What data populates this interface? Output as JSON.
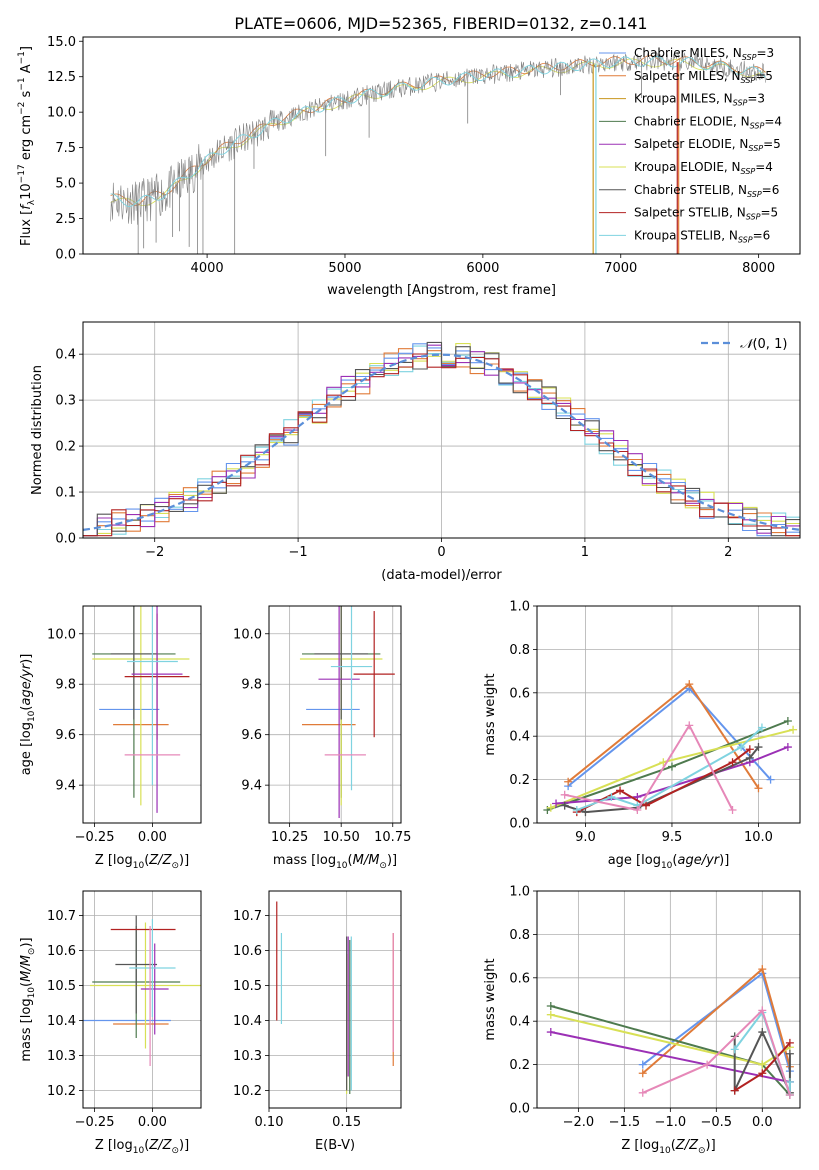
{
  "figure_title": "PLATE=0606, MJD=52365, FIBERID=0132, z=0.141",
  "colors": {
    "Chabrier MILES": "#6495ed",
    "Salpeter MILES": "#e07b39",
    "Kroupa MILES": "#c8961e",
    "Chabrier ELODIE": "#4e7a4e",
    "Salpeter ELODIE": "#9b30b5",
    "Kroupa ELODIE": "#d8e055",
    "Chabrier STELIB": "#555555",
    "Salpeter STELIB": "#b22222",
    "Kroupa STELIB": "#7fd3e0",
    "data": "#808080",
    "pink": "#e688b8",
    "gauss": "#5b8fd9"
  },
  "chart_data": [
    {
      "id": "spectrum",
      "type": "line",
      "title": "PLATE=0606, MJD=52365, FIBERID=0132, z=0.141",
      "xlabel": "wavelength [Angstrom, rest frame]",
      "ylabel": "Flux [f_λ10^-17 erg cm^-2 s^-1 A^-1]",
      "xlim": [
        3100,
        8300
      ],
      "ylim": [
        0,
        15.3
      ],
      "xticks": [
        4000,
        5000,
        6000,
        7000,
        8000
      ],
      "yticks": [
        0.0,
        2.5,
        5.0,
        7.5,
        10.0,
        12.5,
        15.0
      ],
      "legend_position": "top-right",
      "legend": [
        {
          "label": "Chabrier MILES, N_SSP=3",
          "base": "Chabrier MILES, N",
          "sub": "SSP",
          "tail": "=3"
        },
        {
          "label": "Salpeter MILES, N_SSP=5",
          "base": "Salpeter MILES, N",
          "sub": "SSP",
          "tail": "=5"
        },
        {
          "label": "Kroupa MILES, N_SSP=3",
          "base": "Kroupa MILES, N",
          "sub": "SSP",
          "tail": "=3"
        },
        {
          "label": "Chabrier ELODIE, N_SSP=4",
          "base": "Chabrier ELODIE, N",
          "sub": "SSP",
          "tail": "=4"
        },
        {
          "label": "Salpeter ELODIE, N_SSP=5",
          "base": "Salpeter ELODIE, N",
          "sub": "SSP",
          "tail": "=5"
        },
        {
          "label": "Kroupa ELODIE, N_SSP=4",
          "base": "Kroupa ELODIE, N",
          "sub": "SSP",
          "tail": "=4"
        },
        {
          "label": "Chabrier STELIB, N_SSP=6",
          "base": "Chabrier STELIB, N",
          "sub": "SSP",
          "tail": "=6"
        },
        {
          "label": "Salpeter STELIB, N_SSP=5",
          "base": "Salpeter STELIB, N",
          "sub": "SSP",
          "tail": "=5"
        },
        {
          "label": "Kroupa STELIB, N_SSP=6",
          "base": "Kroupa STELIB, N",
          "sub": "SSP",
          "tail": "=6"
        }
      ],
      "continuum": [
        [
          3300,
          3.9
        ],
        [
          3500,
          3.6
        ],
        [
          3700,
          4.3
        ],
        [
          3900,
          5.9
        ],
        [
          4100,
          7.3
        ],
        [
          4300,
          8.3
        ],
        [
          4500,
          9.3
        ],
        [
          4700,
          10.0
        ],
        [
          4900,
          10.6
        ],
        [
          5100,
          11.1
        ],
        [
          5400,
          11.7
        ],
        [
          5700,
          12.2
        ],
        [
          6000,
          12.6
        ],
        [
          6300,
          12.9
        ],
        [
          6600,
          13.2
        ],
        [
          6900,
          13.5
        ],
        [
          7200,
          13.6
        ],
        [
          7500,
          13.5
        ],
        [
          7800,
          13.1
        ],
        [
          8050,
          12.7
        ]
      ],
      "absorption_lines": [
        [
          3500,
          0.0
        ],
        [
          3540,
          0.4
        ],
        [
          3630,
          0.8
        ],
        [
          3750,
          1.2
        ],
        [
          3800,
          1.6
        ],
        [
          3870,
          0.5
        ],
        [
          3930,
          0.0
        ],
        [
          3970,
          0.0
        ],
        [
          4200,
          0.0
        ],
        [
          4340,
          6.0
        ],
        [
          4860,
          6.9
        ],
        [
          5175,
          8.2
        ],
        [
          5890,
          9.2
        ],
        [
          6563,
          11.2
        ],
        [
          7150,
          11.0
        ]
      ],
      "model_drops": [
        [
          6800,
          "#c8961e"
        ],
        [
          6820,
          "#7fd3e0"
        ],
        [
          7410,
          "#b22222"
        ],
        [
          7420,
          "#e07b39"
        ]
      ],
      "flux_range": [
        3300,
        8050
      ]
    },
    {
      "id": "residuals",
      "type": "area",
      "xlabel": "(data-model)/error",
      "ylabel": "Normed distribution",
      "xlim": [
        -2.5,
        2.5
      ],
      "ylim": [
        0,
        0.47
      ],
      "xticks": [
        -2,
        -1,
        0,
        1,
        2
      ],
      "yticks": [
        0.0,
        0.1,
        0.2,
        0.3,
        0.4
      ],
      "legend": {
        "label": "N(0, 1)",
        "script": "𝒩",
        "args": "(0, 1)"
      },
      "legend_position": "top-right",
      "bin_width": 0.1,
      "bin_start": -2.5
    },
    {
      "id": "age_vs_Z",
      "type": "scatter",
      "xlabel": "Z [log10(Z/Z⊙)]",
      "ylabel": "age [log10(age/yr)]",
      "xlim": [
        -0.3,
        0.21
      ],
      "ylim": [
        9.25,
        10.11
      ],
      "xticks": [
        -0.25,
        0.0
      ],
      "yticks": [
        9.4,
        9.6,
        9.8,
        10.0
      ],
      "points": [
        {
          "c": "Chabrier MILES",
          "x": -0.1,
          "xe": 0.13,
          "y": 9.7,
          "ye": 0.0
        },
        {
          "c": "Salpeter MILES",
          "x": -0.05,
          "xe": 0.12,
          "y": 9.64,
          "ye": 0.0
        },
        {
          "c": "Chabrier ELODIE",
          "x": -0.08,
          "xe": 0.18,
          "y": 9.92,
          "ye": 0.57
        },
        {
          "c": "Kroupa ELODIE",
          "x": -0.05,
          "xe": 0.21,
          "y": 9.9,
          "ye": 0.58
        },
        {
          "c": "Chabrier STELIB",
          "x": -0.08,
          "xe": 0.1,
          "y": 9.92,
          "ye": 0.26
        },
        {
          "c": "Salpeter STELIB",
          "x": 0.02,
          "xe": 0.14,
          "y": 9.83,
          "ye": 0.25
        },
        {
          "c": "Salpeter ELODIE",
          "x": 0.02,
          "xe": 0.11,
          "y": 9.84,
          "ye": 0.55
        },
        {
          "c": "Kroupa STELIB",
          "x": 0.0,
          "xe": 0.11,
          "y": 9.89,
          "ye": 0.49
        },
        {
          "c": "pink",
          "x": 0.0,
          "xe": 0.12,
          "y": 9.52,
          "ye": 0.0
        }
      ]
    },
    {
      "id": "age_vs_mass",
      "type": "scatter",
      "xlabel": "mass [log10(M/M⊙)]",
      "ylabel": "",
      "xlim": [
        10.15,
        10.79
      ],
      "ylim": [
        9.25,
        10.11
      ],
      "xticks": [
        10.25,
        10.5,
        10.75
      ],
      "yticks": [
        9.4,
        9.6,
        9.8,
        10.0
      ],
      "points": [
        {
          "c": "Chabrier MILES",
          "x": 10.46,
          "xe": 0.13,
          "y": 9.7,
          "ye": 0.0
        },
        {
          "c": "Salpeter MILES",
          "x": 10.44,
          "xe": 0.13,
          "y": 9.64,
          "ye": 0.0
        },
        {
          "c": "Chabrier ELODIE",
          "x": 10.5,
          "xe": 0.19,
          "y": 9.92,
          "ye": 0.57
        },
        {
          "c": "Kroupa ELODIE",
          "x": 10.5,
          "xe": 0.2,
          "y": 9.9,
          "ye": 0.58
        },
        {
          "c": "Chabrier STELIB",
          "x": 10.5,
          "xe": 0.13,
          "y": 9.92,
          "ye": 0.26
        },
        {
          "c": "Salpeter STELIB",
          "x": 10.66,
          "xe": 0.1,
          "y": 9.84,
          "ye": 0.25
        },
        {
          "c": "Salpeter ELODIE",
          "x": 10.49,
          "xe": 0.1,
          "y": 9.82,
          "ye": 0.55
        },
        {
          "c": "Kroupa STELIB",
          "x": 10.55,
          "xe": 0.1,
          "y": 9.87,
          "ye": 0.49
        },
        {
          "c": "pink",
          "x": 10.52,
          "xe": 0.1,
          "y": 9.52,
          "ye": 0.0
        }
      ]
    },
    {
      "id": "massweight_vs_age",
      "type": "line",
      "xlabel": "age [log10(age/yr)]",
      "ylabel": "mass weight",
      "xlim": [
        8.72,
        10.24
      ],
      "ylim": [
        0,
        1.0
      ],
      "xticks": [
        9.0,
        9.5,
        10.0
      ],
      "yticks": [
        0.0,
        0.2,
        0.4,
        0.6,
        0.8,
        1.0
      ],
      "series": [
        {
          "c": "Chabrier MILES",
          "x": [
            8.9,
            9.6,
            10.07
          ],
          "y": [
            0.17,
            0.62,
            0.2
          ]
        },
        {
          "c": "Salpeter MILES",
          "x": [
            8.9,
            9.6,
            10.0
          ],
          "y": [
            0.19,
            0.64,
            0.16
          ]
        },
        {
          "c": "Chabrier ELODIE",
          "x": [
            8.78,
            9.5,
            10.17
          ],
          "y": [
            0.06,
            0.26,
            0.47
          ]
        },
        {
          "c": "Kroupa ELODIE",
          "x": [
            8.8,
            9.45,
            10.2
          ],
          "y": [
            0.07,
            0.28,
            0.43
          ]
        },
        {
          "c": "Salpeter ELODIE",
          "x": [
            8.83,
            9.3,
            9.95,
            10.17
          ],
          "y": [
            0.09,
            0.12,
            0.28,
            0.35
          ]
        },
        {
          "c": "Chabrier STELIB",
          "x": [
            8.88,
            9.0,
            9.3,
            9.95,
            10.0
          ],
          "y": [
            0.08,
            0.05,
            0.07,
            0.3,
            0.35
          ]
        },
        {
          "c": "Salpeter STELIB",
          "x": [
            8.95,
            9.2,
            9.35,
            9.85,
            9.95
          ],
          "y": [
            0.05,
            0.15,
            0.08,
            0.28,
            0.34
          ]
        },
        {
          "c": "Kroupa STELIB",
          "x": [
            8.95,
            9.15,
            9.3,
            9.9,
            10.02
          ],
          "y": [
            0.06,
            0.12,
            0.08,
            0.35,
            0.44
          ]
        },
        {
          "c": "pink",
          "x": [
            8.88,
            9.3,
            9.6,
            9.85
          ],
          "y": [
            0.13,
            0.06,
            0.45,
            0.06
          ]
        }
      ]
    },
    {
      "id": "mass_vs_Z",
      "type": "scatter",
      "xlabel": "Z [log10(Z/Z⊙)]",
      "ylabel": "mass [log10(M/M⊙)]",
      "xlim": [
        -0.3,
        0.21
      ],
      "ylim": [
        10.15,
        10.77
      ],
      "xticks": [
        -0.25,
        0.0
      ],
      "yticks": [
        10.2,
        10.3,
        10.4,
        10.5,
        10.6,
        10.7
      ],
      "points": [
        {
          "c": "Chabrier MILES",
          "x": -0.12,
          "xe": 0.2,
          "y": 10.4,
          "ye": 0.0
        },
        {
          "c": "Salpeter MILES",
          "x": -0.05,
          "xe": 0.12,
          "y": 10.39,
          "ye": 0.0
        },
        {
          "c": "Chabrier ELODIE",
          "x": -0.07,
          "xe": 0.19,
          "y": 10.51,
          "ye": 0.16
        },
        {
          "c": "Kroupa ELODIE",
          "x": -0.03,
          "xe": 0.24,
          "y": 10.5,
          "ye": 0.18
        },
        {
          "c": "Chabrier STELIB",
          "x": -0.07,
          "xe": 0.09,
          "y": 10.56,
          "ye": 0.14
        },
        {
          "c": "Salpeter STELIB",
          "x": -0.04,
          "xe": 0.14,
          "y": 10.66,
          "ye": 0.0
        },
        {
          "c": "Salpeter ELODIE",
          "x": 0.01,
          "xe": 0.06,
          "y": 10.49,
          "ye": 0.13
        },
        {
          "c": "Kroupa STELIB",
          "x": 0.0,
          "xe": 0.1,
          "y": 10.55,
          "ye": 0.14
        },
        {
          "c": "pink",
          "x": -0.01,
          "xe": 0.0,
          "y": 10.47,
          "ye": 0.2
        }
      ]
    },
    {
      "id": "mass_vs_ebv",
      "type": "scatter",
      "xlabel": "E(B-V)",
      "ylabel": "",
      "xlim": [
        0.1,
        0.185
      ],
      "ylim": [
        10.15,
        10.77
      ],
      "xticks": [
        0.1,
        0.15
      ],
      "yticks": [
        10.2,
        10.3,
        10.4,
        10.5,
        10.6,
        10.7
      ],
      "points": [
        {
          "c": "Salpeter STELIB",
          "x": 0.105,
          "xe": 0.0,
          "y": 10.57,
          "ye": 0.17
        },
        {
          "c": "Kroupa STELIB",
          "x": 0.108,
          "xe": 0.0,
          "y": 10.52,
          "ye": 0.13
        },
        {
          "c": "Kroupa ELODIE",
          "x": 0.15,
          "xe": 0.0,
          "y": 10.39,
          "ye": 0.2
        },
        {
          "c": "Chabrier STELIB",
          "x": 0.15,
          "xe": 0.0,
          "y": 10.42,
          "ye": 0.22
        },
        {
          "c": "Salpeter ELODIE",
          "x": 0.151,
          "xe": 0.0,
          "y": 10.44,
          "ye": 0.2
        },
        {
          "c": "Chabrier ELODIE",
          "x": 0.152,
          "xe": 0.0,
          "y": 10.41,
          "ye": 0.22
        },
        {
          "c": "Kroupa STELIB",
          "x": 0.153,
          "xe": 0.0,
          "y": 10.42,
          "ye": 0.22
        },
        {
          "c": "Salpeter MILES",
          "x": 0.18,
          "xe": 0.0,
          "y": 10.46,
          "ye": 0.19
        },
        {
          "c": "pink",
          "x": 0.18,
          "xe": 0.0,
          "y": 10.48,
          "ye": 0.17
        }
      ]
    },
    {
      "id": "massweight_vs_Z",
      "type": "line",
      "xlabel": "Z [log10(Z/Z⊙)]",
      "ylabel": "mass weight",
      "xlim": [
        -2.45,
        0.41
      ],
      "ylim": [
        0,
        1.0
      ],
      "xticks": [
        -2.0,
        -1.5,
        -1.0,
        -0.5,
        0.0
      ],
      "yticks": [
        0.0,
        0.2,
        0.4,
        0.6,
        0.8,
        1.0
      ],
      "series": [
        {
          "c": "Chabrier MILES",
          "x": [
            -1.3,
            0.0,
            0.3
          ],
          "y": [
            0.2,
            0.62,
            0.17
          ]
        },
        {
          "c": "Salpeter MILES",
          "x": [
            -1.3,
            0.0,
            0.3
          ],
          "y": [
            0.16,
            0.64,
            0.19
          ]
        },
        {
          "c": "Chabrier ELODIE",
          "x": [
            -2.3,
            0.0,
            0.3
          ],
          "y": [
            0.47,
            0.2,
            0.06
          ]
        },
        {
          "c": "Kroupa ELODIE",
          "x": [
            -2.3,
            0.0,
            0.3
          ],
          "y": [
            0.43,
            0.2,
            0.28
          ]
        },
        {
          "c": "Salpeter ELODIE",
          "x": [
            -2.3,
            0.3
          ],
          "y": [
            0.35,
            0.12
          ]
        },
        {
          "c": "Chabrier STELIB",
          "x": [
            -0.3,
            -0.3,
            0.0,
            0.3,
            0.3
          ],
          "y": [
            0.33,
            0.08,
            0.35,
            0.07,
            0.25
          ]
        },
        {
          "c": "Salpeter STELIB",
          "x": [
            -0.3,
            0.0,
            0.3
          ],
          "y": [
            0.08,
            0.16,
            0.3
          ]
        },
        {
          "c": "Kroupa STELIB",
          "x": [
            -0.3,
            0.0,
            0.3,
            0.3
          ],
          "y": [
            0.27,
            0.44,
            0.06,
            0.12
          ]
        },
        {
          "c": "pink",
          "x": [
            -1.3,
            -0.6,
            0.0,
            0.3
          ],
          "y": [
            0.07,
            0.2,
            0.45,
            0.06
          ]
        }
      ]
    }
  ]
}
